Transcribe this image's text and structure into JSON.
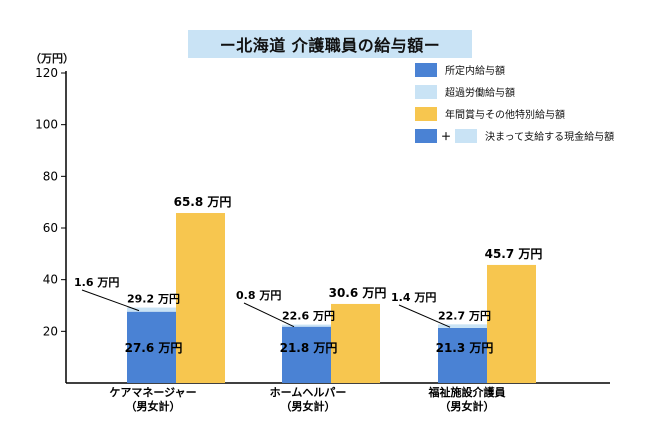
{
  "chart_data": {
    "type": "bar",
    "title": "ー北海道 介護職員の給与額ー",
    "unit_label": "（万円）",
    "ylim": [
      0,
      120
    ],
    "yticks": [
      20,
      40,
      60,
      80,
      100,
      120
    ],
    "grid": false,
    "legend_position": "top-right",
    "categories": [
      {
        "line1": "ケアマネージャー",
        "line2": "（男女計）"
      },
      {
        "line1": "ホームヘルパー",
        "line2": "（男女計）"
      },
      {
        "line1": "福祉施設介護員",
        "line2": "（男女計）"
      }
    ],
    "series": [
      {
        "name": "所定内給与額",
        "color": "#4a82d4",
        "values": [
          27.6,
          21.8,
          21.3
        ]
      },
      {
        "name": "超過労働給与額",
        "color": "#c9e3f5",
        "values": [
          1.6,
          0.8,
          1.4
        ]
      },
      {
        "name": "年間賞与その他特別給与額",
        "color": "#f7c64f",
        "values": [
          65.8,
          30.6,
          45.7
        ]
      }
    ],
    "totals": [
      29.2,
      22.6,
      22.7
    ],
    "data_labels": {
      "scheduled": [
        "27.6 万円",
        "21.8 万円",
        "21.3 万円"
      ],
      "overtime": [
        "1.6 万円",
        "0.8 万円",
        "1.4 万円"
      ],
      "total": [
        "29.2 万円",
        "22.6 万円",
        "22.7 万円"
      ],
      "bonus": [
        "65.8 万円",
        "30.6 万円",
        "45.7 万円"
      ]
    },
    "legend": {
      "scheduled": "所定内給与額",
      "overtime": "超過労働給与額",
      "bonus": "年間賞与その他特別給与額",
      "plus": "＋",
      "combined": "決まって支給する現金給与額"
    }
  }
}
